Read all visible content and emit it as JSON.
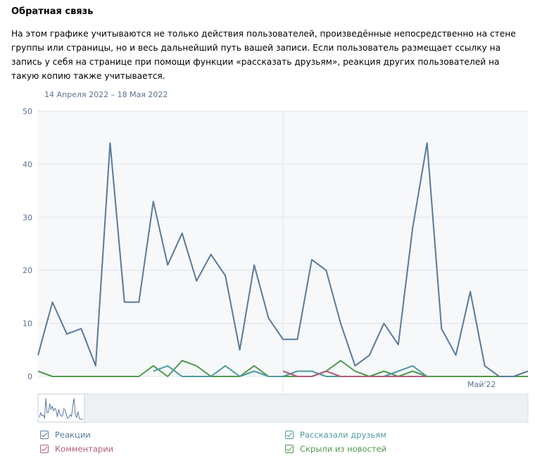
{
  "section": {
    "title": "Обратная связь",
    "description": "На этом графике учитываются не только действия пользователей, произведённые непосредственно на стене группы или страницы, но и весь дальнейший путь вашей записи. Если пользователь размещает ссылку на запись у себя на странице при помощи функции «рассказать друзьям», реакция других пользователей на такую копию также учитывается.",
    "date_range": "14 Апреля 2022 – 18 Мая 2022"
  },
  "colors": {
    "reactions": "#597a99",
    "comments": "#b05c7e",
    "shares": "#4e9a9e",
    "hidden": "#4f9a4c",
    "grid": "#dfe4ea",
    "plot_bg": "#f6f8fa",
    "axis_text": "#5a7190"
  },
  "chart_data": {
    "type": "line",
    "x_start": "2022-04-14",
    "x_end": "2022-05-18",
    "month_label": "Май'22",
    "ylim": [
      0,
      50
    ],
    "yticks": [
      0,
      10,
      20,
      30,
      40,
      50
    ],
    "grid": true,
    "legend_placement": "bottom",
    "series": [
      {
        "key": "reactions",
        "name": "Реакции",
        "values": [
          4,
          14,
          8,
          9,
          2,
          44,
          14,
          14,
          33,
          21,
          27,
          18,
          23,
          19,
          5,
          21,
          11,
          7,
          7,
          22,
          20,
          10,
          2,
          4,
          10,
          6,
          28,
          44,
          9,
          4,
          16,
          2,
          0,
          0,
          1
        ]
      },
      {
        "key": "comments",
        "name": "Комментарии",
        "values": [
          null,
          null,
          null,
          null,
          null,
          null,
          null,
          null,
          null,
          null,
          null,
          null,
          null,
          null,
          null,
          null,
          null,
          1,
          0,
          0,
          1,
          0,
          0,
          0,
          0,
          0,
          0,
          0,
          null,
          null,
          null,
          null,
          null,
          null,
          null
        ]
      },
      {
        "key": "shares",
        "name": "Рассказали друзьям",
        "values": [
          null,
          null,
          null,
          null,
          null,
          null,
          null,
          null,
          1,
          2,
          0,
          0,
          0,
          2,
          0,
          1,
          0,
          0,
          1,
          1,
          0,
          0,
          0,
          0,
          0,
          1,
          2,
          0,
          null,
          null,
          null,
          null,
          null,
          null,
          null
        ]
      },
      {
        "key": "hidden",
        "name": "Скрыли из новостей",
        "values": [
          1,
          0,
          0,
          0,
          0,
          0,
          0,
          0,
          2,
          0,
          3,
          2,
          0,
          0,
          0,
          2,
          0,
          0,
          0,
          0,
          1,
          3,
          1,
          0,
          1,
          0,
          1,
          0,
          0,
          0,
          0,
          0,
          0,
          0,
          0
        ]
      }
    ]
  }
}
